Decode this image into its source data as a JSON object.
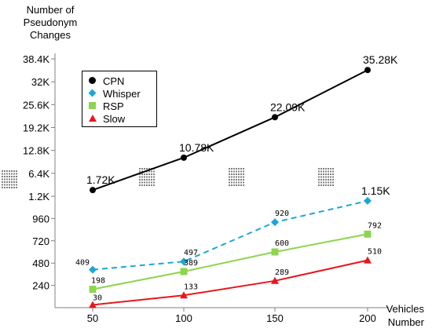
{
  "chart_data": {
    "type": "line",
    "ylabel": "Number of\nPseudonym\nChanges",
    "xlabel": "Vehicles\nNumber",
    "x": [
      50,
      100,
      150,
      200
    ],
    "x_ticks": [
      "50",
      "100",
      "150",
      "200"
    ],
    "y_axis": {
      "broken": true,
      "lower_ticks": [
        240,
        480,
        720,
        960,
        1200
      ],
      "lower_tick_labels": [
        "240",
        "480",
        "720",
        "960",
        "1.2K"
      ],
      "upper_ticks": [
        6400,
        12800,
        19200,
        25600,
        32000,
        38400
      ],
      "upper_tick_labels": [
        "6.4K",
        "12.8K",
        "19.2K",
        "25.6K",
        "32K",
        "38.4K"
      ]
    },
    "legend_position": "top-left",
    "grid": false,
    "series": [
      {
        "name": "CPN",
        "values": [
          1720,
          10780,
          22090,
          35280
        ],
        "labels": [
          "1.72K",
          "10.78K",
          "22.09K",
          "35.28K"
        ],
        "color": "#000000",
        "marker": "circle",
        "dash": "solid"
      },
      {
        "name": "Whisper",
        "values": [
          409,
          497,
          920,
          1150
        ],
        "labels": [
          "409",
          "497",
          "920",
          "1.15K"
        ],
        "color": "#1aa7d8",
        "marker": "diamond",
        "dash": "dashed"
      },
      {
        "name": "RSP",
        "values": [
          198,
          389,
          600,
          792
        ],
        "labels": [
          "198",
          "389",
          "600",
          "792"
        ],
        "color": "#8ed44e",
        "marker": "square",
        "dash": "solid"
      },
      {
        "name": "Slow",
        "values": [
          30,
          133,
          289,
          510
        ],
        "labels": [
          "30",
          "133",
          "289",
          "510"
        ],
        "color": "#e8161d",
        "marker": "triangle",
        "dash": "solid"
      }
    ]
  }
}
